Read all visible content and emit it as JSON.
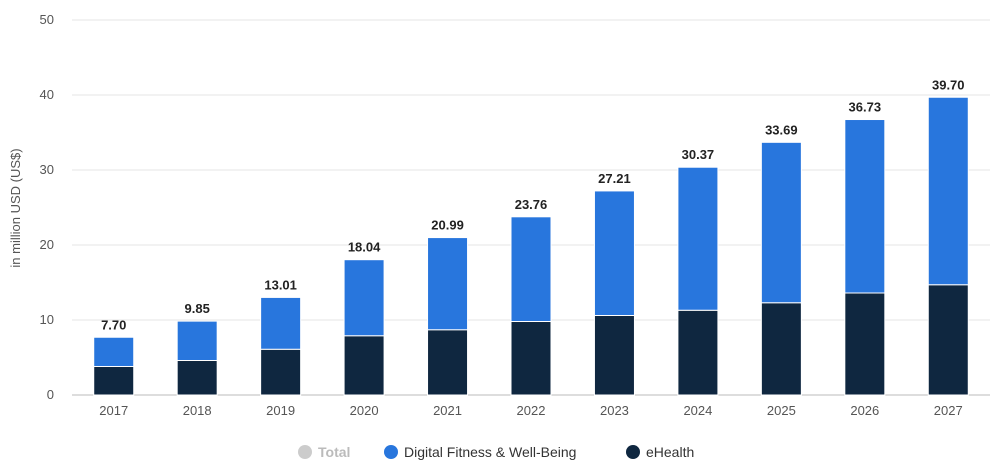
{
  "chart_data": {
    "type": "bar",
    "stacked": true,
    "categories": [
      "2017",
      "2018",
      "2019",
      "2020",
      "2021",
      "2022",
      "2023",
      "2024",
      "2025",
      "2026",
      "2027"
    ],
    "series": [
      {
        "name": "eHealth",
        "color": "#0f2740",
        "values": [
          3.8,
          4.6,
          6.1,
          7.9,
          8.7,
          9.8,
          10.6,
          11.3,
          12.3,
          13.6,
          14.7
        ]
      },
      {
        "name": "Digital Fitness & Well-Being",
        "color": "#2876dd",
        "values": [
          3.9,
          5.25,
          6.91,
          10.14,
          12.29,
          13.96,
          16.61,
          19.07,
          21.39,
          23.13,
          25.0
        ]
      }
    ],
    "totals": [
      "7.70",
      "9.85",
      "13.01",
      "18.04",
      "20.99",
      "23.76",
      "27.21",
      "30.37",
      "33.69",
      "36.73",
      "39.70"
    ],
    "ylabel": "in million USD (US$)",
    "ylim": [
      0,
      50
    ],
    "yticks": [
      "0",
      "10",
      "20",
      "30",
      "40",
      "50"
    ],
    "grid": true,
    "legend": {
      "position": "bottom",
      "items": [
        {
          "label": "Total",
          "color": "#cccccc",
          "inactive": true
        },
        {
          "label": "Digital Fitness & Well-Being",
          "color": "#2876dd",
          "inactive": false
        },
        {
          "label": "eHealth",
          "color": "#0f2740",
          "inactive": false
        }
      ]
    }
  }
}
